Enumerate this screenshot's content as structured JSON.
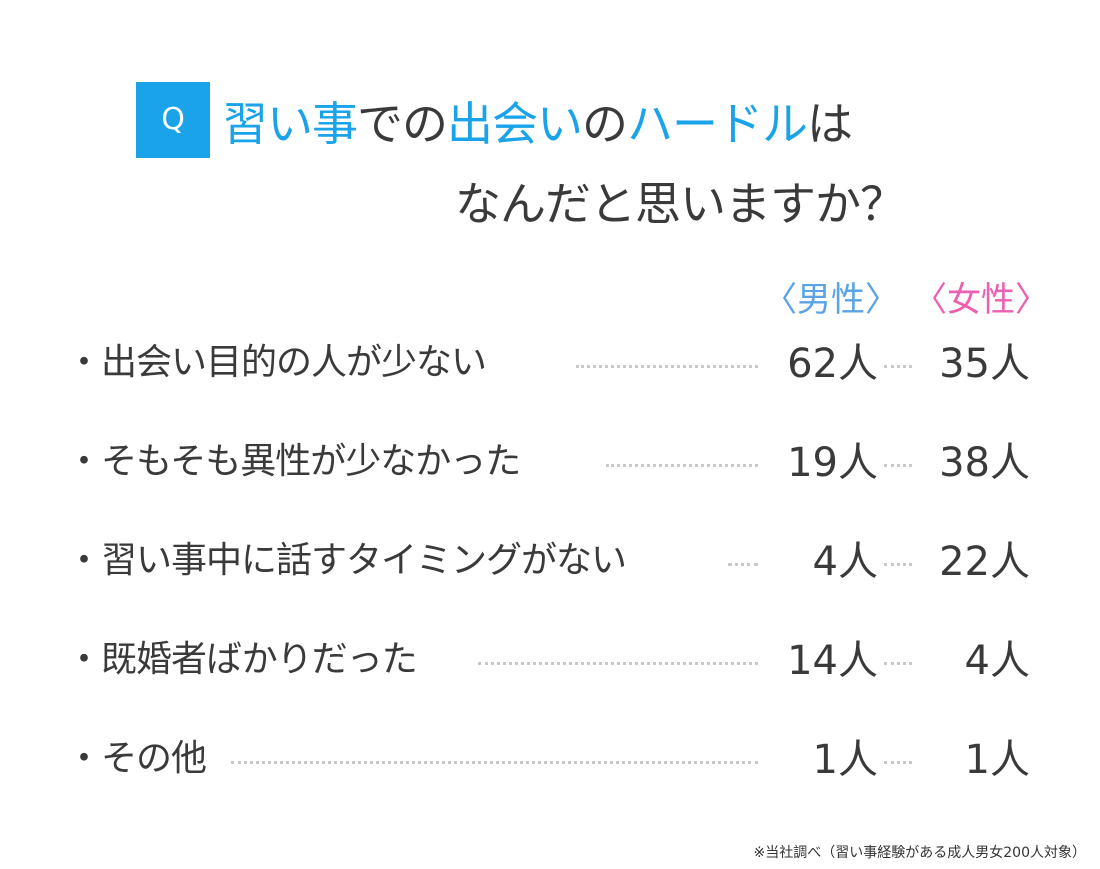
{
  "question": {
    "badge": "Q",
    "line1": [
      {
        "text": "習い事",
        "highlight": true
      },
      {
        "text": "での",
        "highlight": false
      },
      {
        "text": "出会い",
        "highlight": true
      },
      {
        "text": "の",
        "highlight": false
      },
      {
        "text": "ハードル",
        "highlight": true
      },
      {
        "text": "は",
        "highlight": false
      }
    ],
    "line2": "なんだと思いますか？"
  },
  "columns": {
    "male": "〈男性〉",
    "female": "〈女性〉"
  },
  "colors": {
    "accent": "#1aa3e8",
    "male": "#5aa4e6",
    "female": "#ec5fb1",
    "text": "#3a3a3a"
  },
  "rows": [
    {
      "label": "・出会い目的の人が少ない",
      "male": "62人",
      "female": "35人"
    },
    {
      "label": "・そもそも異性が少なかった",
      "male": "19人",
      "female": "38人"
    },
    {
      "label": "・習い事中に話すタイミングがない",
      "male": "4人",
      "female": "22人"
    },
    {
      "label": "・既婚者ばかりだった",
      "male": "14人",
      "female": "4人"
    },
    {
      "label": "・その他",
      "male": "1人",
      "female": "1人"
    }
  ],
  "footnote": "※当社調べ（習い事経験がある成人男女200人対象）"
}
